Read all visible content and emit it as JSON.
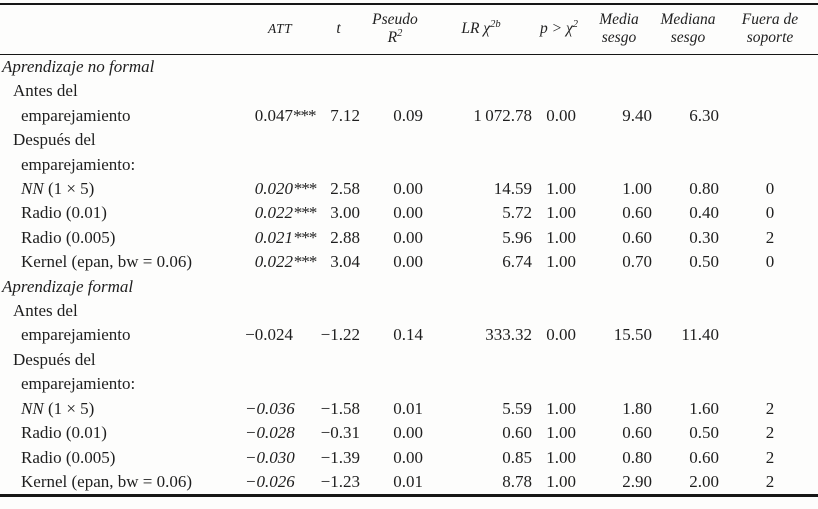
{
  "table": {
    "header": {
      "att": "ATT",
      "t": "t",
      "pseudo": {
        "line1": "Pseudo",
        "base": "R",
        "sup": "2"
      },
      "lr": {
        "base": "LR χ",
        "sup": "2b"
      },
      "p": {
        "base": "p > χ",
        "sup": "2"
      },
      "media": {
        "line1": "Media",
        "line2": "sesgo"
      },
      "mediana": {
        "line1": "Mediana",
        "line2": "sesgo"
      },
      "fuera": {
        "line1": "Fuera de",
        "line2": "soporte"
      }
    },
    "rows": [
      {
        "label": "Aprendizaje no formal"
      },
      {
        "label": "Antes del"
      },
      {
        "label": "emparejamiento",
        "att": "0.047",
        "stars": "***",
        "t": "7.12",
        "r2": "0.09",
        "lr": "1 072.78",
        "p": "0.00",
        "media": "9.40",
        "mediana": "6.30",
        "fuera": ""
      },
      {
        "label": "Después del"
      },
      {
        "label": "emparejamiento:"
      },
      {
        "label_em": "NN",
        "label_rest": " (1 × 5)",
        "att": "0.020",
        "stars": "***",
        "t": "2.58",
        "r2": "0.00",
        "lr": "14.59",
        "p": "1.00",
        "media": "1.00",
        "mediana": "0.80",
        "fuera": "0"
      },
      {
        "label": "Radio (0.01)",
        "att": "0.022",
        "stars": "***",
        "t": "3.00",
        "r2": "0.00",
        "lr": "5.72",
        "p": "1.00",
        "media": "0.60",
        "mediana": "0.40",
        "fuera": "0"
      },
      {
        "label": "Radio (0.005)",
        "att": "0.021",
        "stars": "***",
        "t": "2.88",
        "r2": "0.00",
        "lr": "5.96",
        "p": "1.00",
        "media": "0.60",
        "mediana": "0.30",
        "fuera": "2"
      },
      {
        "label": "Kernel (epan, bw = 0.06)",
        "att": "0.022",
        "stars": "***",
        "t": "3.04",
        "r2": "0.00",
        "lr": "6.74",
        "p": "1.00",
        "media": "0.70",
        "mediana": "0.50",
        "fuera": "0"
      },
      {
        "label": "Aprendizaje formal"
      },
      {
        "label": "Antes del"
      },
      {
        "label": "emparejamiento",
        "att": "−0.024",
        "stars": "",
        "t": "−1.22",
        "r2": "0.14",
        "lr": "333.32",
        "p": "0.00",
        "media": "15.50",
        "mediana": "11.40",
        "fuera": ""
      },
      {
        "label": "Después del"
      },
      {
        "label": "emparejamiento:"
      },
      {
        "label_em": "NN",
        "label_rest": " (1 × 5)",
        "att": "−0.036",
        "stars": "",
        "t": "−1.58",
        "r2": "0.01",
        "lr": "5.59",
        "p": "1.00",
        "media": "1.80",
        "mediana": "1.60",
        "fuera": "2"
      },
      {
        "label": "Radio (0.01)",
        "att": "−0.028",
        "stars": "",
        "t": "−0.31",
        "r2": "0.00",
        "lr": "0.60",
        "p": "1.00",
        "media": "0.60",
        "mediana": "0.50",
        "fuera": "2"
      },
      {
        "label": "Radio (0.005)",
        "att": "−0.030",
        "stars": "",
        "t": "−1.39",
        "r2": "0.00",
        "lr": "0.85",
        "p": "1.00",
        "media": "0.80",
        "mediana": "0.60",
        "fuera": "2"
      },
      {
        "label": "Kernel (epan, bw = 0.06)",
        "att": "−0.026",
        "stars": "",
        "t": "−1.23",
        "r2": "0.01",
        "lr": "8.78",
        "p": "1.00",
        "media": "2.90",
        "mediana": "2.00",
        "fuera": "2"
      }
    ]
  }
}
